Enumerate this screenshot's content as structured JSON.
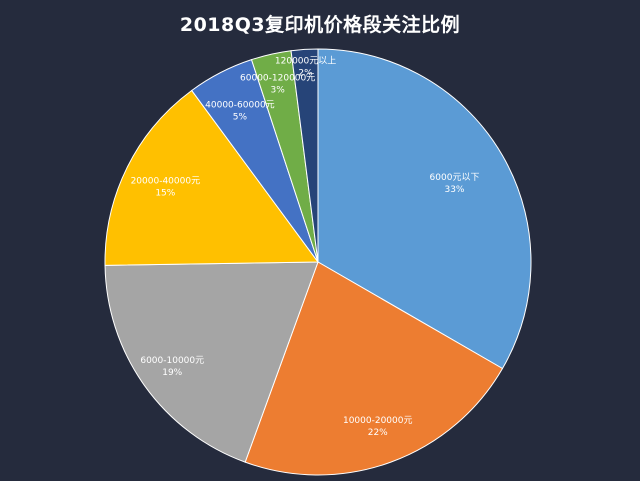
{
  "chart_data": {
    "type": "pie",
    "title": "2018Q3复印机价格段关注比例",
    "slices": [
      {
        "label": "6000元以下",
        "value": 33,
        "percent_label": "33%",
        "color": "#5b9bd5"
      },
      {
        "label": "10000-20000元",
        "value": 22,
        "percent_label": "22%",
        "color": "#ed7d31"
      },
      {
        "label": "6000-10000元",
        "value": 19,
        "percent_label": "19%",
        "color": "#a5a5a5"
      },
      {
        "label": "20000-40000元",
        "value": 15,
        "percent_label": "15%",
        "color": "#ffc000"
      },
      {
        "label": "40000-60000元",
        "value": 5,
        "percent_label": "5%",
        "color": "#4472c4"
      },
      {
        "label": "60000-120000元",
        "value": 3,
        "percent_label": "3%",
        "color": "#70ad47"
      },
      {
        "label": "120000元以上",
        "value": 2,
        "percent_label": "2%",
        "color": "#264478"
      }
    ],
    "start_angle": "12 o'clock",
    "direction": "clockwise"
  }
}
